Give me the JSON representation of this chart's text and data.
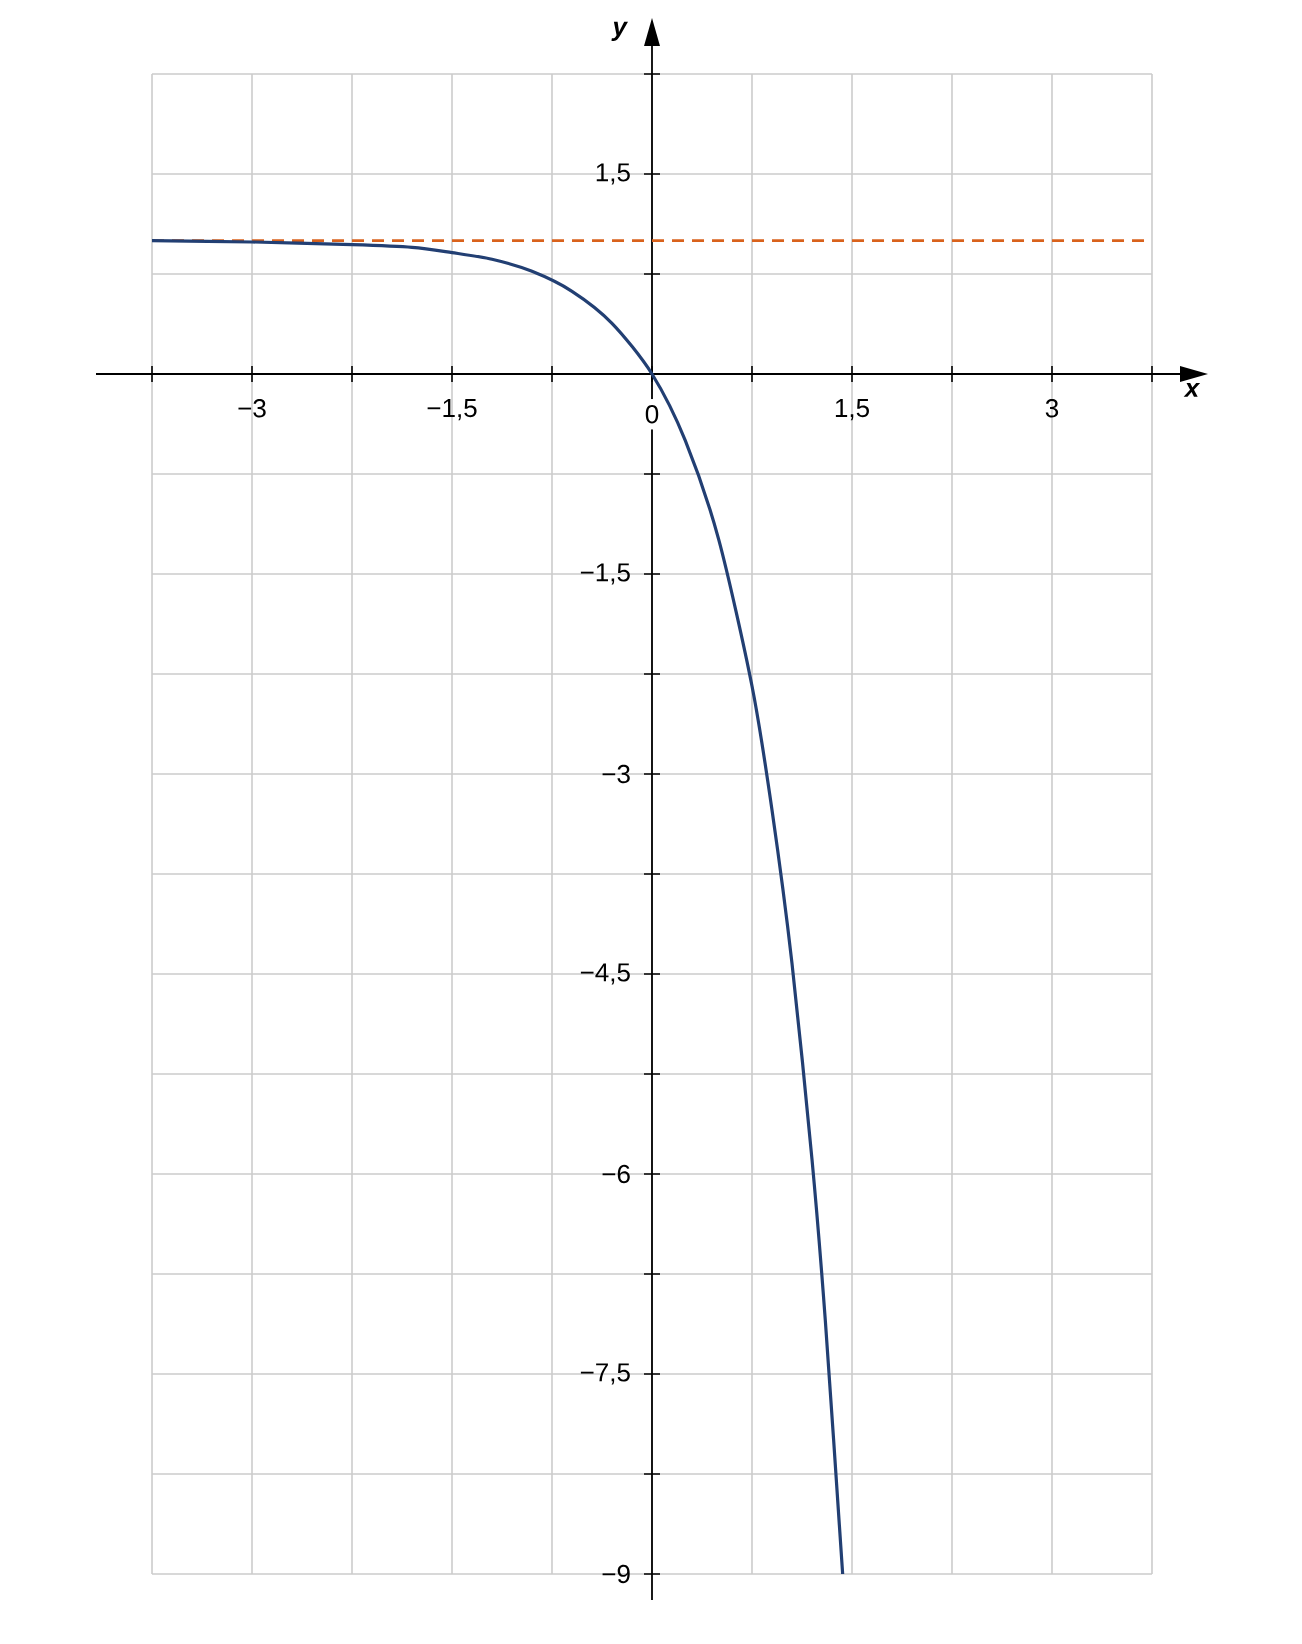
{
  "chart_data": {
    "type": "line",
    "xlabel": "x",
    "ylabel": "y",
    "series": [
      {
        "color": "#223f73",
        "x": [
          -3.75,
          -3,
          -2.25,
          -1.8,
          -1.5,
          -1.2,
          -0.9,
          -0.6,
          -0.3,
          0,
          0.25,
          0.5,
          0.75,
          0.9,
          1.05,
          1.2,
          1.3,
          1.43
        ],
        "values": [
          1.0,
          0.99,
          0.97,
          0.95,
          0.91,
          0.86,
          0.77,
          0.62,
          0.38,
          0,
          -0.5,
          -1.24,
          -2.34,
          -3.27,
          -4.42,
          -5.89,
          -7.1,
          -9
        ]
      }
    ],
    "ref_lines": [
      {
        "axis": "y",
        "value": 1,
        "color": "#d9621c",
        "line_style": "dashed"
      }
    ],
    "xlim": [
      -3.75,
      3.75
    ],
    "ylim": [
      -9,
      2.25
    ],
    "xticks": [
      {
        "value": -3.75,
        "label": null
      },
      {
        "value": -3,
        "label": "−3"
      },
      {
        "value": -2.25,
        "label": null
      },
      {
        "value": -1.5,
        "label": "−1,5"
      },
      {
        "value": -0.75,
        "label": null
      },
      {
        "value": 0,
        "label": "0"
      },
      {
        "value": 0.75,
        "label": null
      },
      {
        "value": 1.5,
        "label": "1,5"
      },
      {
        "value": 2.25,
        "label": null
      },
      {
        "value": 3,
        "label": "3"
      },
      {
        "value": 3.75,
        "label": null
      }
    ],
    "yticks": [
      {
        "value": -9,
        "label": "−9"
      },
      {
        "value": -8.25,
        "label": null
      },
      {
        "value": -7.5,
        "label": "−7,5"
      },
      {
        "value": -6.75,
        "label": null
      },
      {
        "value": -6,
        "label": "−6"
      },
      {
        "value": -5.25,
        "label": null
      },
      {
        "value": -4.5,
        "label": "−4,5"
      },
      {
        "value": -3.75,
        "label": null
      },
      {
        "value": -3,
        "label": "−3"
      },
      {
        "value": -2.25,
        "label": null
      },
      {
        "value": -1.5,
        "label": "−1,5"
      },
      {
        "value": -0.75,
        "label": null
      },
      {
        "value": 0.75,
        "label": null
      },
      {
        "value": 1.5,
        "label": "1,5"
      },
      {
        "value": 2.25,
        "label": null
      }
    ],
    "grid": true
  }
}
